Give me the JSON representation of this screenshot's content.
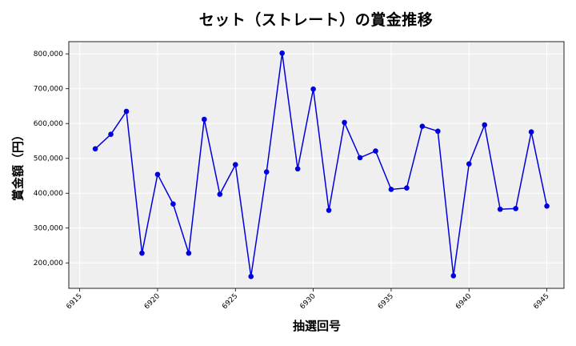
{
  "chart_data": {
    "type": "line",
    "title": "セット（ストレート）の賞金推移",
    "xlabel": "抽選回号",
    "ylabel": "賞金額（円）",
    "x": [
      6916,
      6917,
      6918,
      6919,
      6920,
      6921,
      6922,
      6923,
      6924,
      6925,
      6926,
      6927,
      6928,
      6929,
      6930,
      6931,
      6932,
      6933,
      6934,
      6935,
      6936,
      6937,
      6938,
      6939,
      6940,
      6941,
      6942,
      6943,
      6944,
      6945
    ],
    "series": [
      {
        "name": "賞金額",
        "color": "#0000dd",
        "marker": "circle",
        "values": [
          527500,
          569000,
          635000,
          228000,
          454000,
          369000,
          228000,
          612000,
          397000,
          482000,
          161000,
          461000,
          802000,
          470000,
          699000,
          351000,
          603000,
          502000,
          521000,
          411000,
          415000,
          592000,
          578000,
          163000,
          484000,
          596000,
          354000,
          356000,
          576000,
          363000
        ]
      }
    ],
    "xticks": [
      6915,
      6920,
      6925,
      6930,
      6935,
      6940,
      6945
    ],
    "xtick_labels": [
      "6915",
      "6920",
      "6925",
      "6930",
      "6935",
      "6940",
      "6945"
    ],
    "yticks": [
      200000,
      300000,
      400000,
      500000,
      600000,
      700000,
      800000
    ],
    "ytick_labels": [
      "200,000",
      "300,000",
      "400,000",
      "500,000",
      "600,000",
      "700,000",
      "800,000"
    ],
    "xlim": [
      6914.3,
      6946.1
    ],
    "ylim": [
      127000,
      835000
    ],
    "grid": true,
    "legend": null,
    "colors": {
      "line": "#0000dd",
      "plot_bg": "#efefef",
      "grid": "#ffffff",
      "frame": "#222222"
    }
  }
}
